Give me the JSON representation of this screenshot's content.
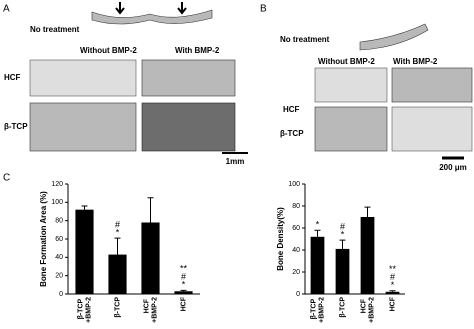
{
  "panel_a": {
    "label": "A",
    "no_treatment": "No treatment",
    "col_without": "Without BMP-2",
    "col_with": "With BMP-2",
    "row_hcf": "HCF",
    "row_tcp": "β-TCP",
    "scale_bar": "1mm"
  },
  "panel_b": {
    "label": "B",
    "no_treatment": "No treatment",
    "col_without": "Without BMP-2",
    "col_with": "With BMP-2",
    "row_hcf": "HCF",
    "row_tcp": "β-TCP",
    "scale_bar": "200 μm"
  },
  "panel_c": {
    "label": "C"
  },
  "chart_data": [
    {
      "type": "bar",
      "y_label": "Bone Formation Area (%)",
      "categories": [
        "β-TCP +BMP-2",
        "β-TCP",
        "HCF +BMP-2",
        "HCF"
      ],
      "values": [
        92,
        43,
        78,
        3
      ],
      "errors": [
        4,
        18,
        27,
        1
      ],
      "annotations": [
        [],
        [
          "#",
          "*"
        ],
        [],
        [
          "**",
          "#",
          "*"
        ]
      ],
      "color": "#000000",
      "ylim": [
        0,
        120
      ],
      "yticks": [
        0,
        20,
        40,
        60,
        80,
        100,
        120
      ]
    },
    {
      "type": "bar",
      "y_label": "Bone Density(%)",
      "categories": [
        "β-TCP +BMP-2",
        "β-TCP",
        "HCF +BMP-2",
        "HCF"
      ],
      "values": [
        52,
        41,
        70,
        2
      ],
      "errors": [
        6,
        8,
        9,
        1
      ],
      "annotations": [
        [
          "*"
        ],
        [
          "#",
          "*"
        ],
        [],
        [
          "**",
          "#",
          "*"
        ]
      ],
      "color": "#000000",
      "ylim": [
        0,
        100
      ],
      "yticks": [
        0,
        20,
        40,
        60,
        80,
        100
      ]
    }
  ]
}
